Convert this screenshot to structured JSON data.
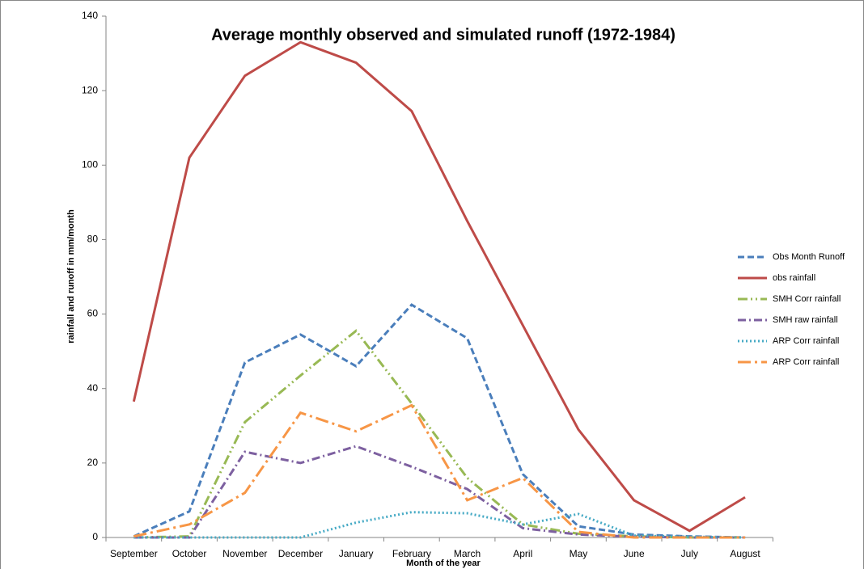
{
  "chart_data": {
    "type": "line",
    "title": "Average monthly observed and simulated runoff (1972-1984)",
    "x_label": "Month of the year",
    "y_label": "rainfall and runoff in mm/month",
    "categories": [
      "September",
      "October",
      "November",
      "December",
      "January",
      "February",
      "March",
      "April",
      "May",
      "June",
      "July",
      "August"
    ],
    "ylim": [
      0,
      140
    ],
    "yticks": [
      0,
      20,
      40,
      60,
      80,
      100,
      120,
      140
    ],
    "grid": false,
    "legend": "right",
    "series": [
      {
        "name": "Obs Month  Runoff",
        "color": "#4a7ebb",
        "style": "dashed",
        "values": [
          0.3,
          7,
          47,
          54.5,
          46,
          62.5,
          53.5,
          17,
          3,
          0.8,
          0.3,
          0
        ]
      },
      {
        "name": "obs rainfall",
        "color": "#be4b48",
        "style": "solid",
        "values": [
          36.5,
          102,
          124,
          133,
          127.5,
          114.5,
          85,
          57,
          29,
          10,
          1.8,
          10.8
        ]
      },
      {
        "name": "SMH Corr rainfall",
        "color": "#98b954",
        "style": "dash-dot-dot",
        "values": [
          0,
          0.3,
          31,
          43.5,
          55.5,
          36,
          16,
          3.5,
          1,
          0.3,
          0,
          0
        ]
      },
      {
        "name": "SMH raw rainfall",
        "color": "#7d60a0",
        "style": "dash-dot",
        "values": [
          0,
          0,
          23,
          20,
          24.5,
          19,
          13,
          2.5,
          0.8,
          0.2,
          0,
          0
        ]
      },
      {
        "name": "ARP Corr rainfall",
        "color": "#46aac5",
        "style": "dotted",
        "values": [
          0,
          0,
          0,
          0,
          4,
          6.8,
          6.5,
          3.5,
          6.3,
          0.5,
          0.2,
          0
        ]
      },
      {
        "name": "ARP Corr rainfall",
        "color": "#f79646",
        "style": "long-dash-dot",
        "values": [
          0.3,
          3.5,
          12,
          33.5,
          28.5,
          35.5,
          10,
          16,
          1.5,
          0,
          0,
          0
        ]
      }
    ]
  }
}
